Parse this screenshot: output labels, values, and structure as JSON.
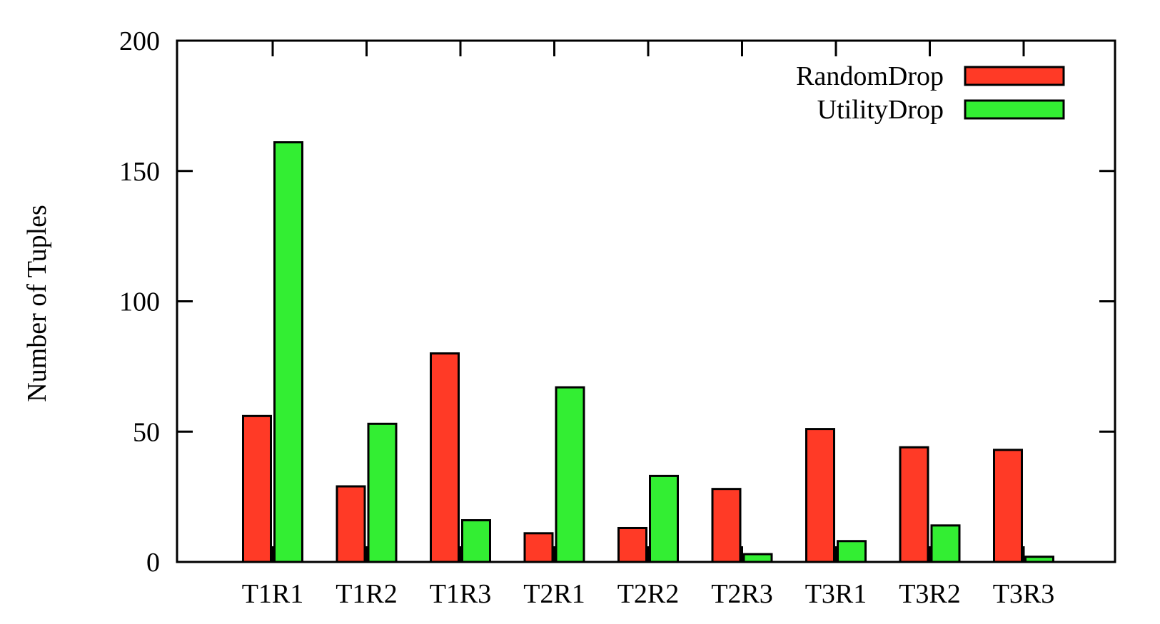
{
  "chart_data": {
    "type": "bar",
    "title": "",
    "xlabel": "",
    "ylabel": "Number of Tuples",
    "ylim": [
      0,
      200
    ],
    "yticks": [
      0,
      50,
      100,
      150,
      200
    ],
    "grid": false,
    "legend_position": "top-right",
    "categories": [
      "T1R1",
      "T1R2",
      "T1R3",
      "T2R1",
      "T2R2",
      "T2R3",
      "T3R1",
      "T3R2",
      "T3R3"
    ],
    "series": [
      {
        "name": "RandomDrop",
        "color": "#ff3a26",
        "values": [
          56,
          29,
          80,
          11,
          13,
          28,
          51,
          44,
          43
        ]
      },
      {
        "name": "UtilityDrop",
        "color": "#33ee33",
        "values": [
          161,
          53,
          16,
          67,
          33,
          3,
          8,
          14,
          2
        ]
      }
    ]
  }
}
